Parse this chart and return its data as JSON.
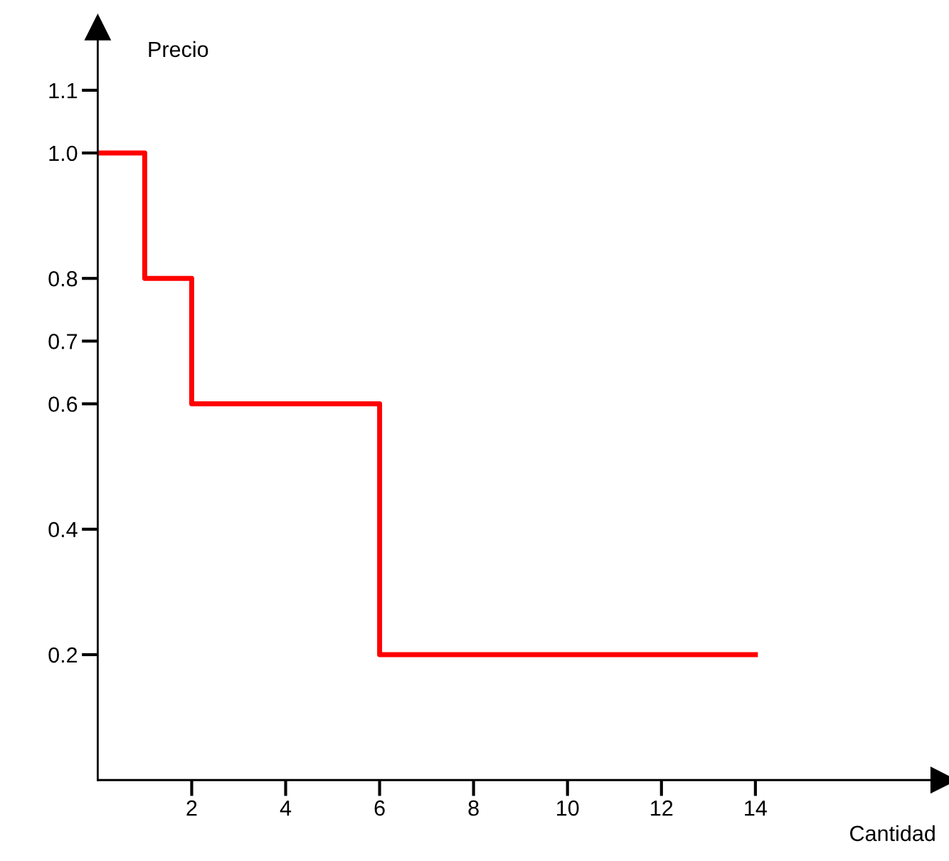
{
  "chart_data": {
    "type": "step",
    "xlabel": "Cantidad",
    "ylabel": "Precio",
    "x": [
      0,
      1,
      2,
      6,
      14
    ],
    "series": [
      {
        "color": "#ff0000",
        "values": [
          1.0,
          0.8,
          0.6,
          0.2,
          0.2
        ]
      }
    ],
    "xlim": [
      0,
      18
    ],
    "xticks": [
      2,
      4,
      6,
      8,
      10,
      12,
      14
    ],
    "ylim": [
      0,
      1.2
    ],
    "yticks": [
      0.2,
      0.4,
      0.6,
      0.7,
      0.8,
      {
        "value": 1.0,
        "label": "1.0"
      },
      1.1
    ],
    "grid": false,
    "legend": false
  }
}
